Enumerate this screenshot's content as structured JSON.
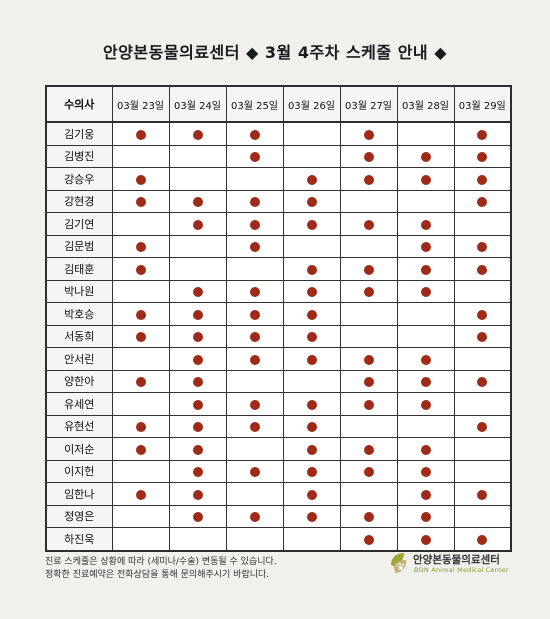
{
  "title": "안양본동물의료센터 ◆ 3월 4주차 스케줄 안내 ◆",
  "table": {
    "corner_label": "수의사",
    "days": [
      "03월 23일",
      "03월 24일",
      "03월 25일",
      "03월 26일",
      "03월 27일",
      "03월 28일",
      "03월 29일"
    ],
    "doctors": [
      {
        "name": "김기웅",
        "schedule": [
          1,
          1,
          1,
          0,
          1,
          0,
          1
        ]
      },
      {
        "name": "김병진",
        "schedule": [
          0,
          0,
          1,
          0,
          1,
          1,
          1
        ]
      },
      {
        "name": "강승우",
        "schedule": [
          1,
          0,
          0,
          1,
          1,
          1,
          1
        ]
      },
      {
        "name": "강현경",
        "schedule": [
          1,
          1,
          1,
          1,
          0,
          0,
          1
        ]
      },
      {
        "name": "김기연",
        "schedule": [
          0,
          1,
          1,
          1,
          1,
          1,
          0
        ]
      },
      {
        "name": "김문범",
        "schedule": [
          1,
          0,
          1,
          0,
          0,
          1,
          1
        ]
      },
      {
        "name": "김태훈",
        "schedule": [
          1,
          0,
          0,
          1,
          1,
          1,
          1
        ]
      },
      {
        "name": "박나원",
        "schedule": [
          0,
          1,
          1,
          1,
          1,
          1,
          0
        ]
      },
      {
        "name": "박호승",
        "schedule": [
          1,
          1,
          1,
          1,
          0,
          0,
          1
        ]
      },
      {
        "name": "서동희",
        "schedule": [
          1,
          1,
          1,
          1,
          0,
          0,
          1
        ]
      },
      {
        "name": "안서린",
        "schedule": [
          0,
          1,
          1,
          1,
          1,
          1,
          0
        ]
      },
      {
        "name": "양한아",
        "schedule": [
          1,
          1,
          0,
          0,
          1,
          1,
          1
        ]
      },
      {
        "name": "유세연",
        "schedule": [
          0,
          1,
          1,
          1,
          1,
          1,
          0
        ]
      },
      {
        "name": "유현선",
        "schedule": [
          1,
          1,
          1,
          1,
          0,
          0,
          1
        ]
      },
      {
        "name": "이저순",
        "schedule": [
          1,
          1,
          0,
          1,
          1,
          1,
          0
        ]
      },
      {
        "name": "이지헌",
        "schedule": [
          0,
          1,
          1,
          1,
          1,
          1,
          0
        ]
      },
      {
        "name": "임한나",
        "schedule": [
          1,
          1,
          0,
          1,
          0,
          1,
          1
        ]
      },
      {
        "name": "정영은",
        "schedule": [
          0,
          1,
          1,
          1,
          1,
          1,
          0
        ]
      },
      {
        "name": "하진욱",
        "schedule": [
          0,
          0,
          0,
          0,
          1,
          1,
          1
        ]
      }
    ]
  },
  "notes": [
    "진료 스케줄은 상황에 따라 (세미나/수술) 변동될 수 있습니다.",
    "정확한 진료예약은 전화상담을 통해 문의해주시기 바랍니다."
  ],
  "logo": {
    "name_ko": "안양본동물의료센터",
    "name_en": "BON Animal Medical Center"
  },
  "colors": {
    "dot": "#9e2a17",
    "background": "#f1f0ed",
    "logo_green": "#8a9a2e"
  }
}
